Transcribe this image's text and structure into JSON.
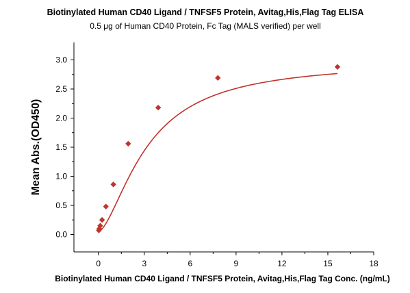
{
  "chart_data": {
    "type": "scatter",
    "title": "Biotinylated Human CD40 Ligand / TNFSF5 Protein, Avitag,His,Flag Tag ELISA",
    "subtitle": "0.5 μg of Human CD40 Protein, Fc Tag (MALS verified) per well",
    "xlabel": "Biotinylated Human CD40 Ligand / TNFSF5 Protein, Avitag,His,Flag Tag Conc. (ng/mL)",
    "ylabel": "Mean Abs.(OD450)",
    "xlim": [
      -1.6,
      18
    ],
    "ylim": [
      -0.3,
      3.3
    ],
    "x_ticks": [
      0,
      3,
      6,
      9,
      12,
      15,
      18
    ],
    "x_tick_labels": [
      "0",
      "3",
      "6",
      "9",
      "12",
      "15",
      "18"
    ],
    "y_ticks": [
      0.0,
      0.5,
      1.0,
      1.5,
      2.0,
      2.5,
      3.0
    ],
    "y_tick_labels": [
      "0.0",
      "0.5",
      "1.0",
      "1.5",
      "2.0",
      "2.5",
      "3.0"
    ],
    "grid": false,
    "legend": "none",
    "series": [
      {
        "marker": "diamond",
        "color": "#c0342c",
        "x": [
          0.03,
          0.06,
          0.12,
          0.24,
          0.49,
          0.98,
          1.95,
          3.91,
          7.81,
          15.63
        ],
        "y": [
          0.07,
          0.1,
          0.15,
          0.25,
          0.48,
          0.86,
          1.56,
          2.18,
          2.69,
          2.88
        ]
      }
    ],
    "fit_curve": {
      "color": "#c0342c",
      "model": "4PL",
      "bottom": 0.05,
      "top": 2.98,
      "ec50": 3.2,
      "hill": 1.6
    }
  }
}
